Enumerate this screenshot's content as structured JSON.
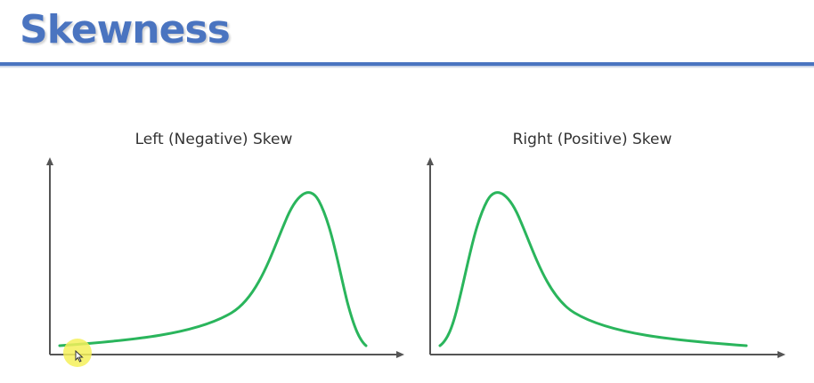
{
  "slide": {
    "title": "Skewness",
    "accent_color": "#4a74c0"
  },
  "panels": [
    {
      "title": "Left (Negative) Skew",
      "shape": "long left tail, peak toward right",
      "curve_color": "#2ab55c"
    },
    {
      "title": "Right (Positive) Skew",
      "shape": "long right tail, peak toward left",
      "curve_color": "#2ab55c"
    }
  ],
  "axis_color": "#555555",
  "cursor": {
    "icon": "mouse-pointer-icon",
    "highlight_color": "#f5f05a"
  }
}
